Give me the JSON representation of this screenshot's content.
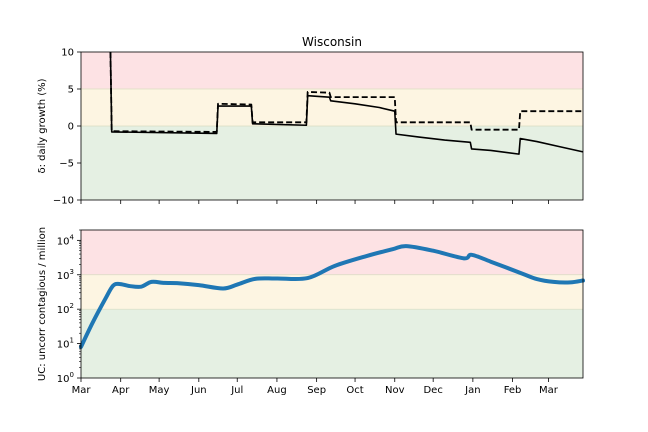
{
  "figure": {
    "title": "Wisconsin"
  },
  "colors": {
    "zone_red": "#fde2e4",
    "zone_yellow": "#fdf5e2",
    "zone_green": "#e5f0e3",
    "zone_line": "#d9dcc0",
    "growth_line": "#000000",
    "uc_line": "#1f77b4"
  },
  "chart_data": [
    {
      "type": "line",
      "title": "Wisconsin",
      "ylabel": "δ: daily growth (%)",
      "xlabel": "",
      "ylim": [
        -10,
        10
      ],
      "yticks": [
        -10,
        -5,
        0,
        5,
        10
      ],
      "ytick_labels": [
        "−10",
        "−5",
        "0",
        "5",
        "10"
      ],
      "zones": [
        {
          "name": "red",
          "from": 5,
          "to": 10
        },
        {
          "name": "yellow",
          "from": 0,
          "to": 5
        },
        {
          "name": "green",
          "from": -10,
          "to": 0
        }
      ],
      "grid": false,
      "series": [
        {
          "style": "solid",
          "points": [
            [
              "2020-03-24",
              10
            ],
            [
              "2020-03-25",
              -0.8
            ],
            [
              "2020-06-15",
              -1.0
            ],
            [
              "2020-06-16",
              2.7
            ],
            [
              "2020-07-12",
              2.7
            ],
            [
              "2020-07-13",
              0.3
            ],
            [
              "2020-08-24",
              0.1
            ],
            [
              "2020-08-25",
              4.1
            ],
            [
              "2020-09-11",
              3.9
            ],
            [
              "2020-09-12",
              3.4
            ],
            [
              "2020-10-01",
              3.0
            ],
            [
              "2020-10-20",
              2.5
            ],
            [
              "2020-11-01",
              2.0
            ],
            [
              "2020-11-02",
              -1.1
            ],
            [
              "2020-11-20",
              -1.5
            ],
            [
              "2020-12-10",
              -1.9
            ],
            [
              "2020-12-30",
              -2.2
            ],
            [
              "2020-12-31",
              -3.1
            ],
            [
              "2021-01-15",
              -3.3
            ],
            [
              "2021-02-06",
              -3.8
            ],
            [
              "2021-02-07",
              -1.7
            ],
            [
              "2021-02-20",
              -2.1
            ],
            [
              "2021-03-10",
              -2.8
            ],
            [
              "2021-03-28",
              -3.5
            ]
          ]
        },
        {
          "style": "dashed",
          "points": [
            [
              "2020-03-24",
              10
            ],
            [
              "2020-03-25",
              -0.7
            ],
            [
              "2020-06-15",
              -0.8
            ],
            [
              "2020-06-16",
              3.0
            ],
            [
              "2020-07-12",
              2.9
            ],
            [
              "2020-07-13",
              0.5
            ],
            [
              "2020-08-24",
              0.5
            ],
            [
              "2020-08-25",
              4.6
            ],
            [
              "2020-09-11",
              4.5
            ],
            [
              "2020-09-12",
              3.9
            ],
            [
              "2020-11-01",
              3.9
            ],
            [
              "2020-11-02",
              0.5
            ],
            [
              "2020-12-30",
              0.5
            ],
            [
              "2020-12-31",
              -0.5
            ],
            [
              "2021-02-06",
              -0.5
            ],
            [
              "2021-02-07",
              2.0
            ],
            [
              "2021-03-28",
              2.0
            ]
          ]
        }
      ]
    },
    {
      "type": "line",
      "scale": "log",
      "ylabel": "UC: uncorr contagious / million",
      "xlabel": "",
      "ylim": [
        1,
        20000
      ],
      "yticks": [
        1,
        10,
        100,
        1000,
        10000
      ],
      "ytick_bases": [
        "10",
        "10",
        "10",
        "10",
        "10"
      ],
      "ytick_exponents": [
        "0",
        "1",
        "2",
        "3",
        "4"
      ],
      "zones": [
        {
          "name": "red",
          "from": 1000,
          "to": 20000
        },
        {
          "name": "yellow",
          "from": 100,
          "to": 1000
        },
        {
          "name": "green",
          "from": 1,
          "to": 100
        }
      ],
      "grid": false,
      "series": [
        {
          "style": "solid",
          "points": [
            [
              "2020-03-01",
              8
            ],
            [
              "2020-03-10",
              40
            ],
            [
              "2020-03-20",
              200
            ],
            [
              "2020-03-26",
              480
            ],
            [
              "2020-03-31",
              540
            ],
            [
              "2020-04-08",
              470
            ],
            [
              "2020-04-17",
              450
            ],
            [
              "2020-04-25",
              620
            ],
            [
              "2020-05-05",
              580
            ],
            [
              "2020-05-15",
              570
            ],
            [
              "2020-06-01",
              500
            ],
            [
              "2020-06-20",
              400
            ],
            [
              "2020-07-01",
              520
            ],
            [
              "2020-07-15",
              760
            ],
            [
              "2020-08-01",
              780
            ],
            [
              "2020-08-25",
              800
            ],
            [
              "2020-09-15",
              1800
            ],
            [
              "2020-10-10",
              3500
            ],
            [
              "2020-10-30",
              5500
            ],
            [
              "2020-11-10",
              6800
            ],
            [
              "2020-12-01",
              5000
            ],
            [
              "2020-12-25",
              3000
            ],
            [
              "2020-12-31",
              3800
            ],
            [
              "2021-01-15",
              2400
            ],
            [
              "2021-02-08",
              1100
            ],
            [
              "2021-02-20",
              750
            ],
            [
              "2021-03-05",
              620
            ],
            [
              "2021-03-18",
              600
            ],
            [
              "2021-03-28",
              680
            ]
          ]
        }
      ]
    }
  ],
  "x_axis": {
    "start": "2020-03-01",
    "end": "2021-03-28",
    "ticks": [
      {
        "date": "2020-03-01",
        "label": "Mar"
      },
      {
        "date": "2020-04-01",
        "label": "Apr"
      },
      {
        "date": "2020-05-01",
        "label": "May"
      },
      {
        "date": "2020-06-01",
        "label": "Jun"
      },
      {
        "date": "2020-07-01",
        "label": "Jul"
      },
      {
        "date": "2020-08-01",
        "label": "Aug"
      },
      {
        "date": "2020-09-01",
        "label": "Sep"
      },
      {
        "date": "2020-10-01",
        "label": "Oct"
      },
      {
        "date": "2020-11-01",
        "label": "Nov"
      },
      {
        "date": "2020-12-01",
        "label": "Dec"
      },
      {
        "date": "2021-01-01",
        "label": "Jan"
      },
      {
        "date": "2021-02-01",
        "label": "Feb"
      },
      {
        "date": "2021-03-01",
        "label": "Mar"
      }
    ]
  }
}
